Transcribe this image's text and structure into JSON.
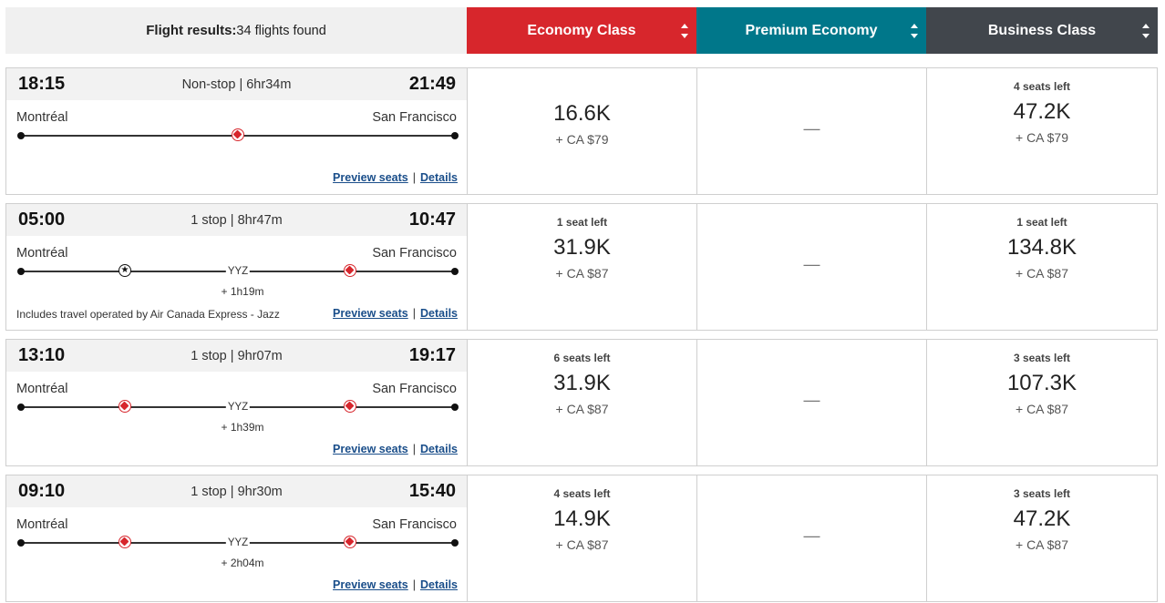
{
  "header": {
    "results_label": "Flight results:",
    "results_count": "34 flights found",
    "economy": "Economy Class",
    "premium": "Premium Economy",
    "business": "Business Class"
  },
  "flights": [
    {
      "dep": "18:15",
      "arr": "21:49",
      "summary": "Non-stop | 6hr34m",
      "origin": "Montréal",
      "dest": "San Francisco",
      "stop_code": "",
      "stop_dur": "",
      "note": "",
      "preview": "Preview seats",
      "details": "Details",
      "eco_seats": "",
      "eco_pts": "16.6K",
      "eco_tax": "+ CA $79",
      "prem": "—",
      "bus_seats": "4 seats left",
      "bus_pts": "47.2K",
      "bus_tax": "+ CA $79"
    },
    {
      "dep": "05:00",
      "arr": "10:47",
      "summary": "1 stop | 8hr47m",
      "origin": "Montréal",
      "dest": "San Francisco",
      "stop_code": "YYZ",
      "stop_dur": "+ 1h19m",
      "note": "Includes travel operated by Air Canada Express - Jazz",
      "preview": "Preview seats",
      "details": "Details",
      "eco_seats": "1 seat left",
      "eco_pts": "31.9K",
      "eco_tax": "+ CA $87",
      "prem": "—",
      "bus_seats": "1 seat left",
      "bus_pts": "134.8K",
      "bus_tax": "+ CA $87"
    },
    {
      "dep": "13:10",
      "arr": "19:17",
      "summary": "1 stop | 9hr07m",
      "origin": "Montréal",
      "dest": "San Francisco",
      "stop_code": "YYZ",
      "stop_dur": "+ 1h39m",
      "note": "",
      "preview": "Preview seats",
      "details": "Details",
      "eco_seats": "6 seats left",
      "eco_pts": "31.9K",
      "eco_tax": "+ CA $87",
      "prem": "—",
      "bus_seats": "3 seats left",
      "bus_pts": "107.3K",
      "bus_tax": "+ CA $87"
    },
    {
      "dep": "09:10",
      "arr": "15:40",
      "summary": "1 stop | 9hr30m",
      "origin": "Montréal",
      "dest": "San Francisco",
      "stop_code": "YYZ",
      "stop_dur": "+ 2h04m",
      "note": "",
      "preview": "Preview seats",
      "details": "Details",
      "eco_seats": "4 seats left",
      "eco_pts": "14.9K",
      "eco_tax": "+ CA $87",
      "prem": "—",
      "bus_seats": "3 seats left",
      "bus_pts": "47.2K",
      "bus_tax": "+ CA $87"
    }
  ],
  "colors": {
    "economy": "#d7262c",
    "premium": "#00778a",
    "business": "#41464c"
  },
  "icons": {
    "nonstop_mid": "maple-leaf-icon",
    "stop_a": [
      "star-alliance-icon",
      "maple-leaf-icon",
      "maple-leaf-icon"
    ],
    "stop_b": "maple-leaf-icon"
  }
}
